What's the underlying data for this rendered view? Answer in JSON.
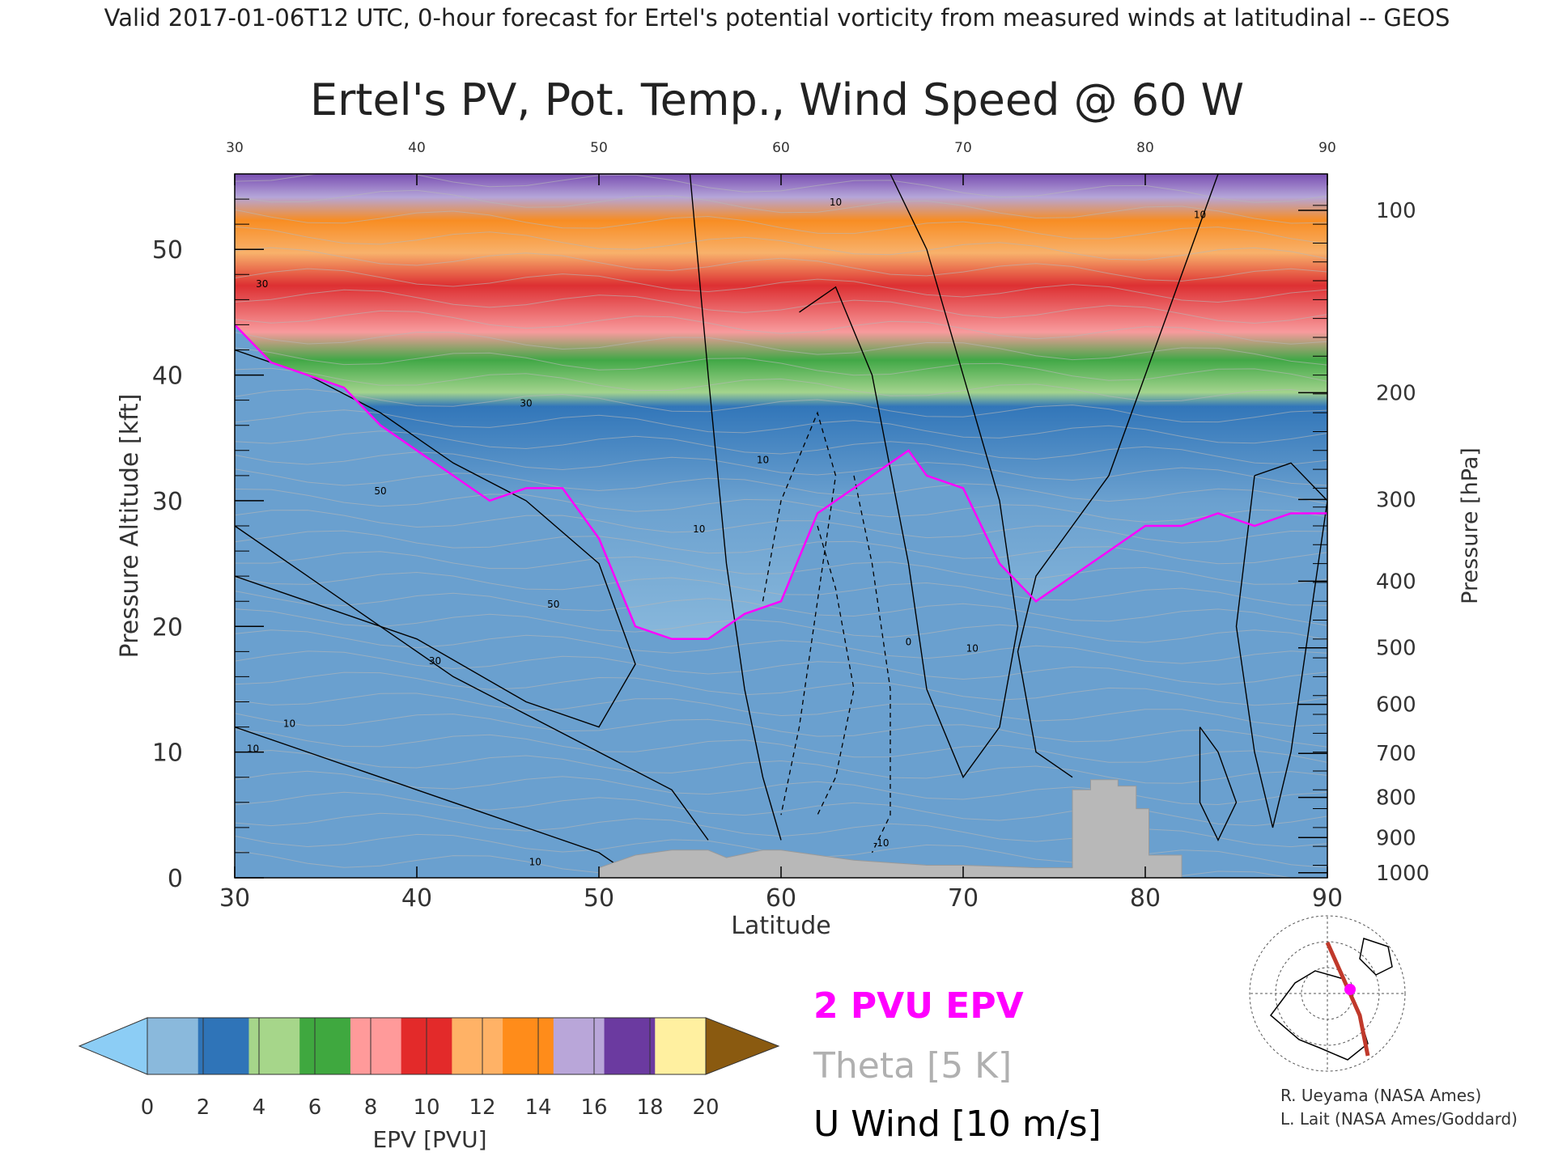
{
  "header": "Valid 2017-01-06T12 UTC, 0-hour forecast for Ertel's potential vorticity from measured winds at latitudinal -- GEOS",
  "chart_data": {
    "type": "heatmap",
    "title": "Ertel's PV, Pot. Temp., Wind Speed @ 60 W",
    "xlabel": "Latitude",
    "ylabel": "Pressure Altitude [kft]",
    "y2label": "Pressure [hPa]",
    "xlim": [
      30,
      90
    ],
    "ylim": [
      0,
      56
    ],
    "x_ticks": [
      30,
      40,
      50,
      60,
      70,
      80,
      90
    ],
    "y_ticks": [
      0,
      10,
      20,
      30,
      40,
      50
    ],
    "pressure_ticks": [
      {
        "hpa": 100,
        "kft": 53.1
      },
      {
        "hpa": 200,
        "kft": 38.6
      },
      {
        "hpa": 300,
        "kft": 30.1
      },
      {
        "hpa": 400,
        "kft": 23.6
      },
      {
        "hpa": 500,
        "kft": 18.3
      },
      {
        "hpa": 600,
        "kft": 13.8
      },
      {
        "hpa": 700,
        "kft": 9.9
      },
      {
        "hpa": 800,
        "kft": 6.4
      },
      {
        "hpa": 900,
        "kft": 3.2
      },
      {
        "hpa": 1000,
        "kft": 0.4
      }
    ],
    "pv_2pvu_line": [
      [
        30,
        44
      ],
      [
        32,
        41
      ],
      [
        34,
        40
      ],
      [
        36,
        39
      ],
      [
        38,
        36
      ],
      [
        40,
        34
      ],
      [
        42,
        32
      ],
      [
        44,
        30
      ],
      [
        46,
        31
      ],
      [
        48,
        31
      ],
      [
        50,
        27
      ],
      [
        52,
        20
      ],
      [
        54,
        19
      ],
      [
        56,
        19
      ],
      [
        58,
        21
      ],
      [
        60,
        22
      ],
      [
        62,
        29
      ],
      [
        64,
        31
      ],
      [
        66,
        33
      ],
      [
        67,
        34
      ],
      [
        68,
        32
      ],
      [
        70,
        31
      ],
      [
        72,
        25
      ],
      [
        74,
        22
      ],
      [
        76,
        24
      ],
      [
        78,
        26
      ],
      [
        80,
        28
      ],
      [
        82,
        28
      ],
      [
        84,
        29
      ],
      [
        86,
        28
      ],
      [
        88,
        29
      ],
      [
        90,
        29
      ]
    ],
    "wind_contour_labels": [
      {
        "x": 31.5,
        "y": 47,
        "text": "30"
      },
      {
        "x": 46,
        "y": 37.5,
        "text": "30"
      },
      {
        "x": 38,
        "y": 30.5,
        "text": "50"
      },
      {
        "x": 47.5,
        "y": 21.5,
        "text": "50"
      },
      {
        "x": 41,
        "y": 17,
        "text": "30"
      },
      {
        "x": 33,
        "y": 12,
        "text": "10"
      },
      {
        "x": 31,
        "y": 10,
        "text": "10"
      },
      {
        "x": 55.5,
        "y": 27.5,
        "text": "10"
      },
      {
        "x": 59,
        "y": 33,
        "text": "10"
      },
      {
        "x": 65.5,
        "y": 2.5,
        "text": "-10"
      },
      {
        "x": 67,
        "y": 18.5,
        "text": "0"
      },
      {
        "x": 70.5,
        "y": 18,
        "text": "10"
      },
      {
        "x": 83,
        "y": 52.5,
        "text": "10"
      },
      {
        "x": 63,
        "y": 53.5,
        "text": "10"
      },
      {
        "x": 46.5,
        "y": 1,
        "text": "10"
      }
    ],
    "topography": [
      [
        50,
        0
      ],
      [
        50,
        0.8
      ],
      [
        52,
        1.8
      ],
      [
        54,
        2.2
      ],
      [
        56,
        2.2
      ],
      [
        57,
        1.6
      ],
      [
        59,
        2.2
      ],
      [
        60,
        2.2
      ],
      [
        62,
        1.8
      ],
      [
        64,
        1.4
      ],
      [
        66,
        1.2
      ],
      [
        68,
        1.0
      ],
      [
        70,
        1.0
      ],
      [
        72,
        0.9
      ],
      [
        74,
        0.8
      ],
      [
        76,
        0.8
      ],
      [
        76,
        7
      ],
      [
        77,
        7
      ],
      [
        77,
        7.8
      ],
      [
        78.5,
        7.8
      ],
      [
        78.5,
        7.3
      ],
      [
        79.5,
        7.3
      ],
      [
        79.5,
        5.5
      ],
      [
        80.2,
        5.5
      ],
      [
        80.2,
        1.8
      ],
      [
        82,
        1.8
      ],
      [
        82,
        0
      ]
    ],
    "colorbar": {
      "label": "EPV [PVU]",
      "ticks": [
        0,
        2,
        4,
        6,
        8,
        10,
        12,
        14,
        16,
        18,
        20
      ],
      "colors": [
        "#8ab9dc",
        "#2f74b8",
        "#a6d68a",
        "#3fa83f",
        "#ff9a9a",
        "#e32a2a",
        "#ffb266",
        "#ff8c1a",
        "#b9a6d9",
        "#6b3aa0",
        "#fff0a0"
      ],
      "under_color": "#8ccdf5",
      "over_color": "#8a5a10"
    },
    "legend": [
      {
        "text": "2 PVU EPV",
        "color": "#ff00ff"
      },
      {
        "text": "Theta [5 K]",
        "color": "#b0b0b0"
      },
      {
        "text": "U Wind [10 m/s]",
        "color": "#000000"
      }
    ]
  },
  "credits": [
    "R. Ueyama (NASA Ames)",
    "L. Lait (NASA Ames/Goddard)"
  ]
}
